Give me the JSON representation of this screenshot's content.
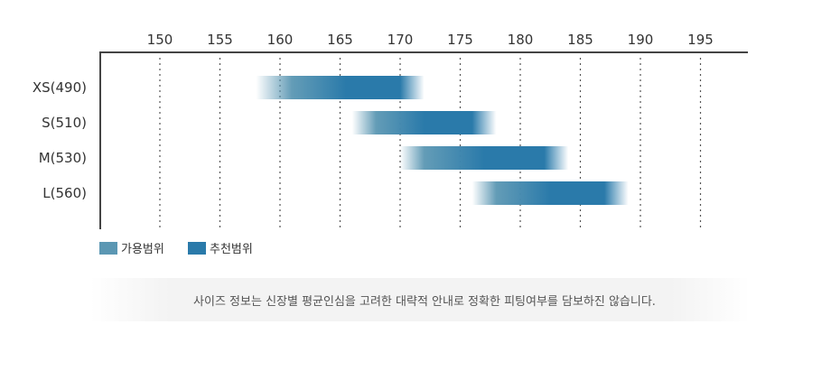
{
  "chart_data": {
    "type": "bar",
    "orientation": "horizontal-range",
    "x_ticks": [
      150,
      155,
      160,
      165,
      170,
      175,
      180,
      185,
      190,
      195
    ],
    "xlim": [
      145,
      199
    ],
    "grid": "vertical-dotted",
    "categories": [
      "XS(490)",
      "S(510)",
      "M(530)",
      "L(560)"
    ],
    "ranges": [
      {
        "category": "XS(490)",
        "allowed": [
          158,
          172
        ],
        "recommended": [
          161,
          170
        ]
      },
      {
        "category": "S(510)",
        "allowed": [
          166,
          178
        ],
        "recommended": [
          168,
          176
        ]
      },
      {
        "category": "M(530)",
        "allowed": [
          170,
          184
        ],
        "recommended": [
          172,
          182
        ]
      },
      {
        "category": "L(560)",
        "allowed": [
          176,
          189
        ],
        "recommended": [
          178,
          187
        ]
      }
    ],
    "legend": [
      {
        "label": "가용범위",
        "color": "#5b97b3"
      },
      {
        "label": "추천범위",
        "color": "#2a7aaa"
      }
    ],
    "legend_position": "bottom-left"
  },
  "colors": {
    "allowed": "#5b97b3",
    "recommended": "#2a7aaa",
    "axis": "#444444",
    "grid": "#555555"
  },
  "note": "사이즈 정보는 신장별 평균인심을 고려한 대략적 안내로 정확한 피팅여부를 담보하진 않습니다."
}
